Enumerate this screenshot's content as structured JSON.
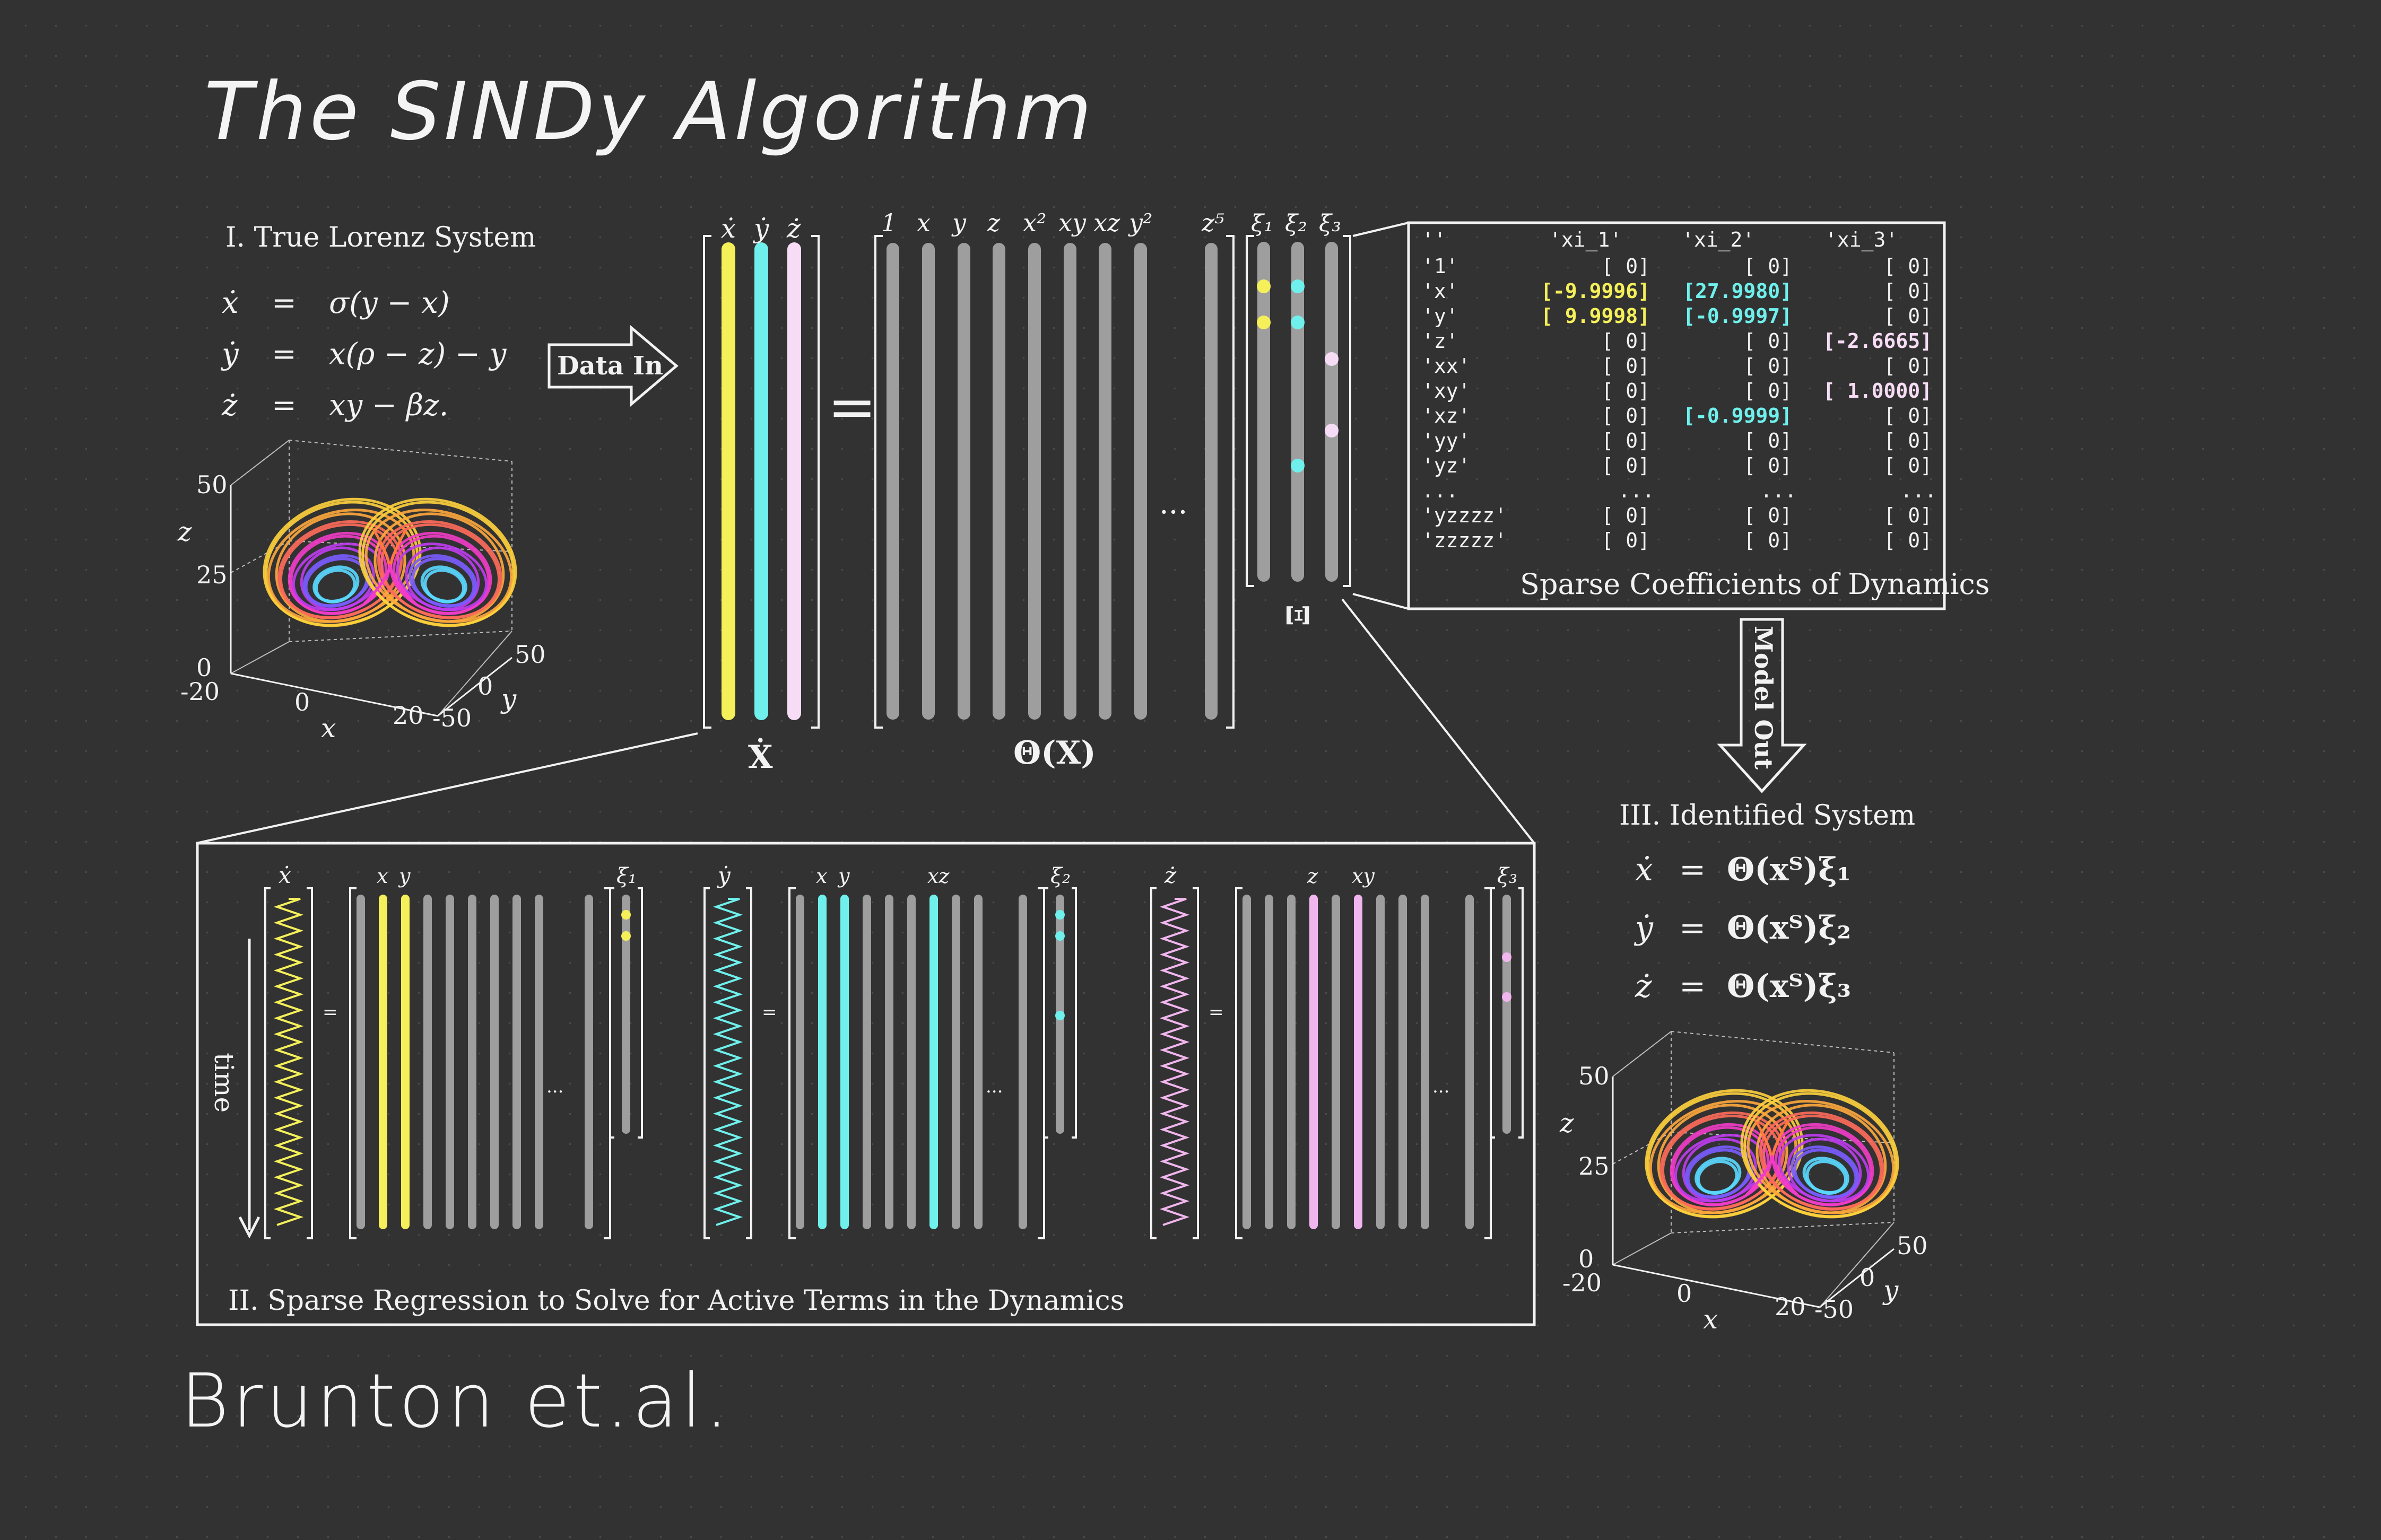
{
  "title": "The SINDy Algorithm",
  "author": "Brunton et.al.",
  "panel1": {
    "heading": "I.  True Lorenz System",
    "equations": [
      {
        "lhs": "ẋ",
        "rhs": "σ(y − x)"
      },
      {
        "lhs": "ẏ",
        "rhs": "x(ρ − z) − y"
      },
      {
        "lhs": "ż",
        "rhs": "xy − βz."
      }
    ],
    "plot_axis": {
      "z_label": "z",
      "x_label": "x",
      "y_label": "y",
      "z_ticks": [
        "50",
        "25",
        "0"
      ],
      "x_ticks": [
        "-20",
        "0",
        "20"
      ],
      "y_ticks": [
        "-50",
        "0",
        "50"
      ]
    }
  },
  "data_in_label": "Data In",
  "model_out_label": "Model Out",
  "xdot_matrix": {
    "col_labels": [
      "ẋ",
      "ẏ",
      "ż"
    ],
    "label": "Ẋ",
    "col_colors": [
      "#f5f05a",
      "#6ff0ec",
      "#f7dcf5"
    ]
  },
  "equals": "=",
  "theta_matrix": {
    "col_labels": [
      "1",
      "x",
      "y",
      "z",
      "x²",
      "xy",
      "xz",
      "y²"
    ],
    "last_label": "z⁵",
    "ellipsis": "···",
    "label": "Θ(X)"
  },
  "xi_matrix": {
    "col_labels": [
      "ξ₁",
      "ξ₂",
      "ξ₃"
    ],
    "label": "Ξ"
  },
  "coef_table": {
    "headers": [
      "''",
      "'xi_1'",
      "'xi_2'",
      "'xi_3'"
    ],
    "rows": [
      {
        "name": "'1'",
        "c1": "[       0]",
        "c2": "[       0]",
        "c3": "[       0]"
      },
      {
        "name": "'x'",
        "c1": "[-9.9996]",
        "c2": "[27.9980]",
        "c3": "[       0]"
      },
      {
        "name": "'y'",
        "c1": "[ 9.9998]",
        "c2": "[-0.9997]",
        "c3": "[       0]"
      },
      {
        "name": "'z'",
        "c1": "[       0]",
        "c2": "[       0]",
        "c3": "[-2.6665]"
      },
      {
        "name": "'xx'",
        "c1": "[       0]",
        "c2": "[       0]",
        "c3": "[       0]"
      },
      {
        "name": "'xy'",
        "c1": "[       0]",
        "c2": "[       0]",
        "c3": "[ 1.0000]"
      },
      {
        "name": "'xz'",
        "c1": "[       0]",
        "c2": "[-0.9999]",
        "c3": "[       0]"
      },
      {
        "name": "'yy'",
        "c1": "[       0]",
        "c2": "[       0]",
        "c3": "[       0]"
      },
      {
        "name": "'yz'",
        "c1": "[       0]",
        "c2": "[       0]",
        "c3": "[       0]"
      },
      {
        "name": "...",
        "c1": "...",
        "c2": "...",
        "c3": "..."
      },
      {
        "name": "'yzzzz'",
        "c1": "[       0]",
        "c2": "[       0]",
        "c3": "[       0]"
      },
      {
        "name": "'zzzzz'",
        "c1": "[       0]",
        "c2": "[       0]",
        "c3": "[       0]"
      }
    ],
    "caption": "Sparse Coefficients of Dynamics",
    "colors": {
      "xi_1": "#f5f05a",
      "xi_2": "#6ff0ec",
      "xi_3": "#f7dcf5"
    }
  },
  "panel2": {
    "caption": "II.  Sparse Regression to Solve for Active Terms in the Dynamics",
    "time_label": "time",
    "groups": [
      {
        "lhs": "ẋ",
        "terms": [
          "x",
          "y"
        ],
        "xi": "ξ₁",
        "color": "#f5f05a"
      },
      {
        "lhs": "ẏ",
        "terms": [
          "x",
          "y",
          "xz"
        ],
        "xi": "ξ₂",
        "color": "#6ff0ec"
      },
      {
        "lhs": "ż",
        "terms": [
          "z",
          "xy"
        ],
        "xi": "ξ₃",
        "color": "#f2b6ef"
      }
    ],
    "ellipsis": "...",
    "equals": "="
  },
  "panel3": {
    "heading": "III.  Identified System",
    "equations": [
      {
        "lhs": "ẋ",
        "rhs": "Θ(xᵀ)ξ₁"
      },
      {
        "lhs": "ẏ",
        "rhs": "Θ(xᵀ)ξ₂"
      },
      {
        "lhs": "ż",
        "rhs": "Θ(xᵀ)ξ₃"
      }
    ]
  }
}
